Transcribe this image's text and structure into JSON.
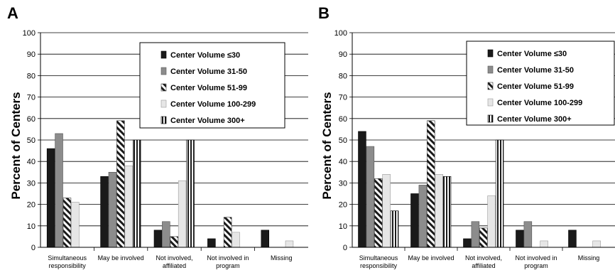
{
  "colors": {
    "s1": "#1a1a1a",
    "s2": "#8c8c8c",
    "s3_stripe": "#1a1a1a",
    "s4": "#e6e6e6",
    "s5": "#4d4d4d",
    "grid": "#000000"
  },
  "chart_data": [
    {
      "panel": "A",
      "type": "bar",
      "ylabel": "Percent of Centers",
      "ylim": [
        0,
        100
      ],
      "yticks": [
        "0",
        "10",
        "20",
        "30",
        "40",
        "50",
        "60",
        "70",
        "80",
        "90",
        "100"
      ],
      "grid": true,
      "legend_position": "top-right",
      "categories": [
        [
          "Simultaneous",
          "responsibility"
        ],
        [
          "May be involved"
        ],
        [
          "Not involved,",
          "affiliated"
        ],
        [
          "Not involved in",
          "program"
        ],
        [
          "Missing"
        ]
      ],
      "series": [
        {
          "name": "Center Volume  ≤30",
          "values": [
            46,
            33,
            8,
            4,
            8
          ]
        },
        {
          "name": "Center Volume  31-50",
          "values": [
            53,
            35,
            12,
            0,
            0
          ]
        },
        {
          "name": "Center Volume 51-99",
          "values": [
            23,
            59,
            5,
            14,
            0
          ]
        },
        {
          "name": "Center Volume  100-299",
          "values": [
            21,
            38,
            31,
            7,
            3
          ]
        },
        {
          "name": "Center Volume 300+",
          "values": [
            0,
            50,
            50,
            0,
            0
          ]
        }
      ]
    },
    {
      "panel": "B",
      "type": "bar",
      "ylabel": "Percent of Centers",
      "ylim": [
        0,
        100
      ],
      "yticks": [
        "0",
        "10",
        "20",
        "30",
        "40",
        "50",
        "60",
        "70",
        "80",
        "90",
        "100"
      ],
      "grid": true,
      "legend_position": "top-right",
      "categories": [
        [
          "Simultaneous",
          "responsibility"
        ],
        [
          "May be involved"
        ],
        [
          "Not involved,",
          "affiliated"
        ],
        [
          "Not involved in",
          "program"
        ],
        [
          "Missing"
        ]
      ],
      "series": [
        {
          "name": "Center Volume ≤30",
          "values": [
            54,
            25,
            4,
            8,
            8
          ]
        },
        {
          "name": "Center Volume 31-50",
          "values": [
            47,
            29,
            12,
            12,
            0
          ]
        },
        {
          "name": "Center Volume 51-99",
          "values": [
            32,
            59,
            9,
            0,
            0
          ]
        },
        {
          "name": "Center Volume 100-299",
          "values": [
            34,
            34,
            24,
            3,
            3
          ]
        },
        {
          "name": "Center Volume 300+",
          "values": [
            17,
            33,
            50,
            0,
            0
          ]
        }
      ]
    }
  ]
}
